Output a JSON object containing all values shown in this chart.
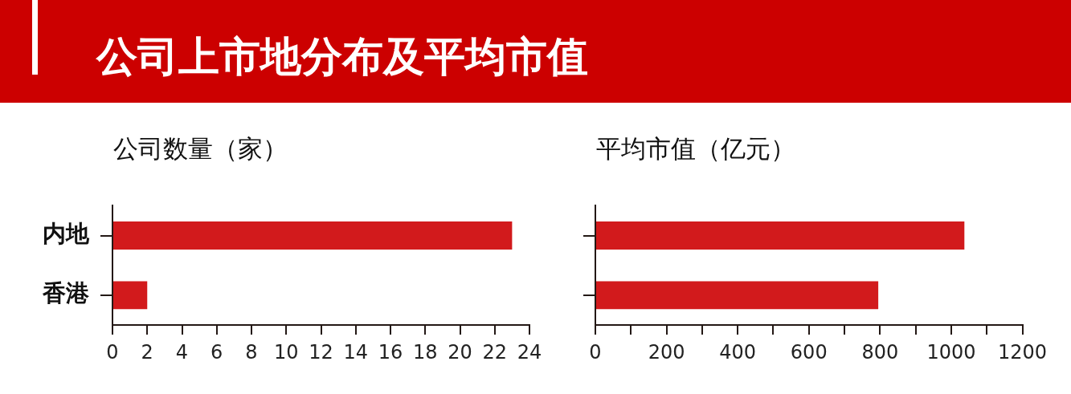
{
  "chart_data": [
    {
      "type": "bar",
      "title": "公司上市地分布及平均市值",
      "subtitle": "公司数量（家）",
      "orientation": "horizontal",
      "categories": [
        "内地",
        "香港"
      ],
      "values": [
        23,
        2
      ],
      "color": "#d21a1c",
      "xlim": [
        0,
        24
      ],
      "xticks": [
        0,
        2,
        4,
        6,
        8,
        10,
        12,
        14,
        16,
        18,
        20,
        22,
        24
      ]
    },
    {
      "type": "bar",
      "subtitle": "平均市值（亿元）",
      "orientation": "horizontal",
      "categories": [
        null,
        null
      ],
      "values": [
        1037,
        795
      ],
      "color": "#d21a1c",
      "xlim": [
        0,
        1200
      ],
      "xticks": [
        0,
        {
          "value": 100,
          "label": null
        },
        200,
        {
          "value": 300,
          "label": null
        },
        400,
        {
          "value": 500,
          "label": null
        },
        600,
        {
          "value": 700,
          "label": null
        },
        800,
        {
          "value": 900,
          "label": null
        },
        1000,
        {
          "value": 1100,
          "label": null
        },
        1200
      ]
    }
  ]
}
